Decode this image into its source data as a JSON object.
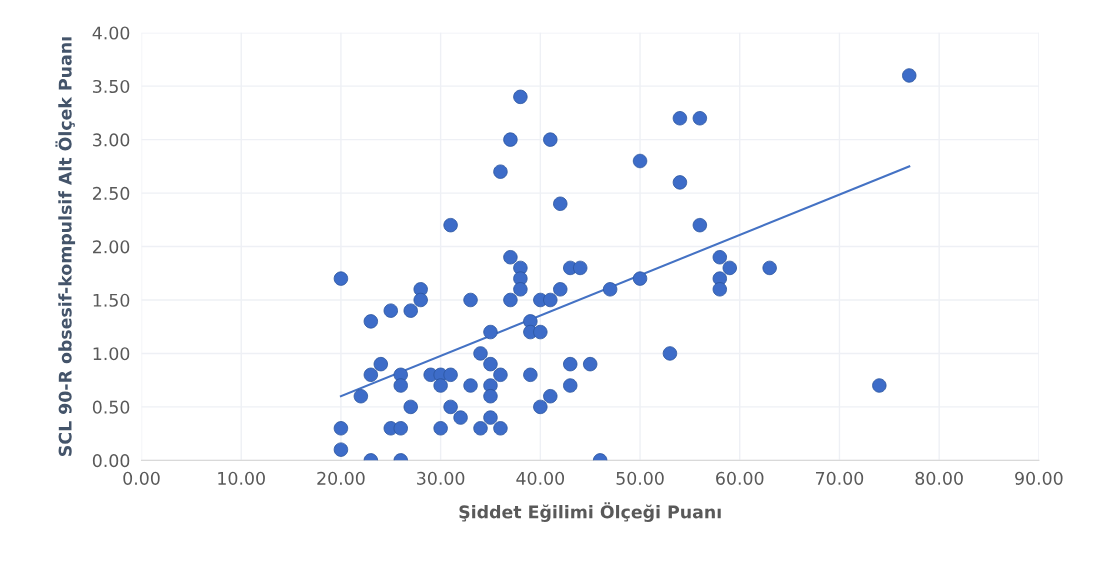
{
  "chart_data": {
    "type": "scatter",
    "xlabel": "Şiddet Eğilimi Ölçeği Puanı",
    "ylabel": "SCL 90-R obsesif-kompulsif Alt Ölçek Puanı",
    "xlim": [
      0,
      90
    ],
    "xticks": [
      {
        "value": 0,
        "label": "0.00"
      },
      {
        "value": 10,
        "label": "10.00"
      },
      {
        "value": 20,
        "label": "20.00"
      },
      {
        "value": 30,
        "label": "30.00"
      },
      {
        "value": 40,
        "label": "40.00"
      },
      {
        "value": 50,
        "label": "50.00"
      },
      {
        "value": 60,
        "label": "60.00"
      },
      {
        "value": 70,
        "label": "70.00"
      },
      {
        "value": 80,
        "label": "80.00"
      },
      {
        "value": 90,
        "label": "90.00"
      }
    ],
    "ylim": [
      0,
      4
    ],
    "yticks": [
      {
        "value": 0,
        "label": "0.00"
      },
      {
        "value": 0.5,
        "label": "0.50"
      },
      {
        "value": 1,
        "label": "1.00"
      },
      {
        "value": 1.5,
        "label": "1.50"
      },
      {
        "value": 2,
        "label": "2.00"
      },
      {
        "value": 2.5,
        "label": "2.50"
      },
      {
        "value": 3,
        "label": "3.00"
      },
      {
        "value": 3.5,
        "label": "3.50"
      },
      {
        "value": 4,
        "label": "4.00"
      }
    ],
    "grid": true,
    "series": [
      {
        "marker": "circle",
        "color": "#3d6cc8",
        "x": [
          20,
          20,
          20,
          22,
          23,
          23,
          23,
          24,
          25,
          25,
          26,
          26,
          26,
          26,
          27,
          27,
          28,
          28,
          29,
          30,
          30,
          30,
          31,
          31,
          31,
          32,
          33,
          33,
          34,
          34,
          35,
          35,
          35,
          35,
          35,
          36,
          36,
          36,
          37,
          37,
          37,
          38,
          38,
          38,
          38,
          39,
          39,
          39,
          40,
          40,
          40,
          41,
          41,
          41,
          42,
          42,
          43,
          43,
          43,
          44,
          45,
          46,
          47,
          50,
          50,
          53,
          54,
          54,
          56,
          56,
          58,
          58,
          58,
          59,
          63,
          74,
          77
        ],
        "values": [
          1.7,
          0.3,
          0.1,
          0.6,
          1.3,
          0.8,
          0,
          0.9,
          1.4,
          0.3,
          0.8,
          0.7,
          0.3,
          0,
          1.4,
          0.5,
          1.6,
          1.5,
          0.8,
          0.8,
          0.7,
          0.3,
          2.2,
          0.8,
          0.5,
          0.4,
          1.5,
          0.7,
          1.0,
          0.3,
          1.2,
          0.9,
          0.7,
          0.6,
          0.4,
          2.7,
          0.8,
          0.3,
          3.0,
          1.9,
          1.5,
          3.4,
          1.8,
          1.7,
          1.6,
          1.3,
          1.2,
          0.8,
          1.5,
          1.2,
          0.5,
          3.0,
          1.5,
          0.6,
          2.4,
          1.6,
          1.8,
          0.9,
          0.7,
          1.8,
          0.9,
          0,
          1.6,
          2.8,
          1.7,
          1.0,
          3.2,
          2.6,
          3.2,
          2.2,
          1.9,
          1.7,
          1.6,
          1.8,
          1.8,
          0.7,
          3.6
        ]
      },
      {
        "type": "line",
        "color": "#4472c4",
        "x": [
          20,
          77
        ],
        "values": [
          0.6,
          2.75
        ]
      }
    ]
  }
}
